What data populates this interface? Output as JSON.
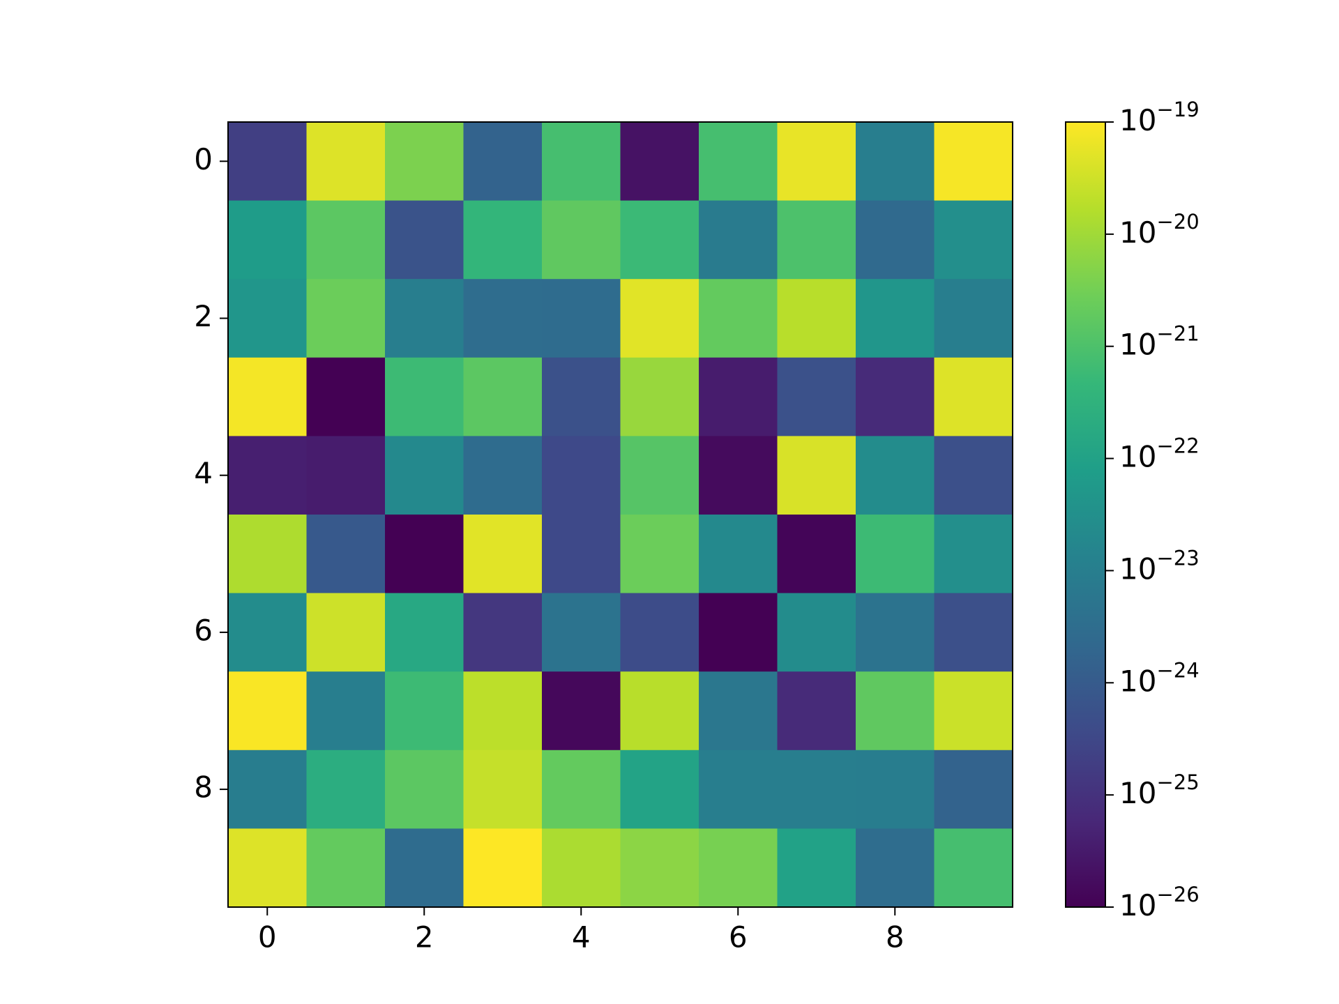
{
  "chart_data": {
    "type": "heatmap",
    "colormap": "viridis",
    "color_scale": "log",
    "xlim": [
      -0.5,
      9.5
    ],
    "ylim": [
      9.5,
      -0.5
    ],
    "xticks": [
      0,
      2,
      4,
      6,
      8
    ],
    "yticks": [
      0,
      2,
      4,
      6,
      8
    ],
    "values": [
      [
        2e-25,
        4.5e-20,
        4e-21,
        1.6e-24,
        8e-22,
        2.2e-26,
        8e-22,
        6e-20,
        1e-23,
        8.5e-20
      ],
      [
        7e-23,
        1.6e-21,
        6e-25,
        4e-22,
        1.8e-21,
        5.6e-22,
        8e-24,
        1e-21,
        2.5e-24,
        3e-23
      ],
      [
        4.5e-23,
        2.5e-21,
        1e-23,
        3e-24,
        2.8e-24,
        5e-20,
        2e-21,
        1.8e-20,
        4.5e-23,
        1e-23
      ],
      [
        8e-20,
        1e-26,
        6e-22,
        1.6e-21,
        5.6e-25,
        8e-21,
        3.5e-26,
        5.6e-25,
        7e-26,
        4.5e-20
      ],
      [
        4e-26,
        3.5e-26,
        2e-23,
        2.8e-24,
        3.5e-25,
        1.3e-21,
        1.6e-26,
        4e-20,
        2.5e-23,
        5e-25
      ],
      [
        1.4e-20,
        9e-25,
        1e-26,
        5e-20,
        3.5e-25,
        2.5e-21,
        2e-23,
        1.2e-26,
        6e-22,
        3e-23
      ],
      [
        2.5e-23,
        3e-20,
        1.6e-22,
        1.3e-25,
        4.5e-24,
        4e-25,
        1e-26,
        2.5e-23,
        4.5e-24,
        5e-25
      ],
      [
        9e-20,
        1e-23,
        6e-22,
        2e-20,
        1.4e-26,
        1.8e-20,
        6e-24,
        7e-26,
        1.8e-21,
        2.8e-20
      ],
      [
        9e-24,
        2.2e-22,
        1.6e-21,
        2.5e-20,
        2e-21,
        1.1e-22,
        1e-23,
        1e-23,
        9e-24,
        1.6e-24
      ],
      [
        4.5e-20,
        2e-21,
        2.8e-24,
        1e-19,
        1.3e-20,
        6e-21,
        3.5e-21,
        1e-22,
        3e-24,
        8e-22
      ]
    ],
    "clim": [
      1e-26,
      1e-19
    ],
    "cticks": [
      {
        "value": 1e-26,
        "label": "10^−26"
      },
      {
        "value": 1e-25,
        "label": "10^−25"
      },
      {
        "value": 1e-24,
        "label": "10^−24"
      },
      {
        "value": 1e-23,
        "label": "10^−23"
      },
      {
        "value": 1e-22,
        "label": "10^−22"
      },
      {
        "value": 1e-21,
        "label": "10^−21"
      },
      {
        "value": 1e-20,
        "label": "10^−20"
      },
      {
        "value": 1e-19,
        "label": "10^−19"
      }
    ]
  }
}
